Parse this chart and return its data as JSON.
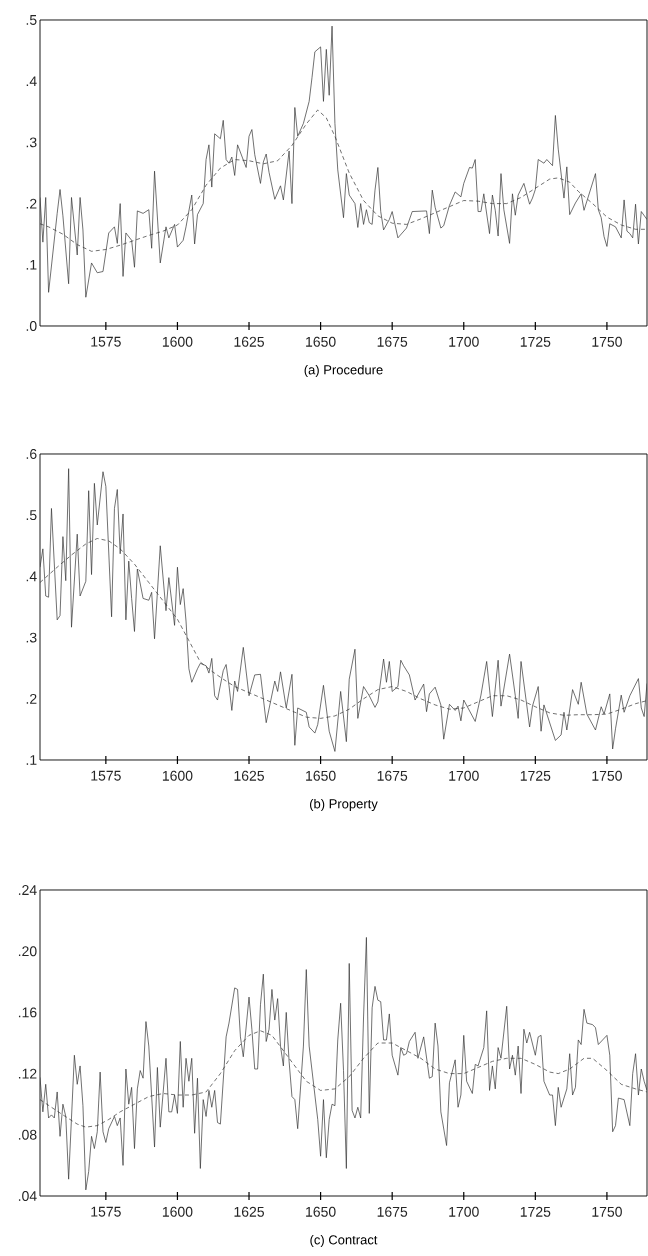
{
  "chart_data": [
    {
      "type": "line",
      "title": "(a) Procedure",
      "xlim": [
        1552,
        1764
      ],
      "ylim": [
        0,
        0.5
      ],
      "xticks": [
        1575,
        1600,
        1625,
        1650,
        1675,
        1700,
        1725,
        1750
      ],
      "yticks": [
        {
          "value": 0,
          "label": ".0"
        },
        {
          "value": 0.1,
          "label": ".1"
        },
        {
          "value": 0.2,
          "label": ".2"
        },
        {
          "value": 0.3,
          "label": ".3"
        },
        {
          "value": 0.4,
          "label": ".4"
        },
        {
          "value": 0.5,
          "label": ".5"
        }
      ],
      "series": [
        {
          "color": "#333333",
          "line_style": "solid",
          "x": [
            1552,
            1553,
            1554,
            1555,
            1558,
            1559,
            1560,
            1562,
            1563,
            1565,
            1566,
            1567,
            1568,
            1570,
            1572,
            1574,
            1576,
            1578,
            1579,
            1580,
            1581,
            1582,
            1584,
            1585,
            1586,
            1588,
            1590,
            1591,
            1592,
            1594,
            1596,
            1597,
            1599,
            1600,
            1602,
            1603,
            1605,
            1606,
            1607,
            1609,
            1610,
            1611,
            1612,
            1613,
            1615,
            1616,
            1617,
            1618,
            1619,
            1620,
            1621,
            1624,
            1625,
            1626,
            1627,
            1629,
            1630,
            1631,
            1632,
            1634,
            1636,
            1637,
            1639,
            1640,
            1641,
            1642,
            1644,
            1646,
            1647,
            1648,
            1650,
            1651,
            1652,
            1653,
            1654,
            1655,
            1656,
            1658,
            1659,
            1660,
            1662,
            1663,
            1664,
            1665,
            1666,
            1667,
            1668,
            1669,
            1670,
            1671,
            1672,
            1674,
            1675,
            1677,
            1680,
            1682,
            1687,
            1688,
            1689,
            1690,
            1692,
            1693,
            1695,
            1697,
            1699,
            1700,
            1702,
            1703,
            1704,
            1705,
            1706,
            1707,
            1709,
            1710,
            1711,
            1712,
            1713,
            1714,
            1716,
            1717,
            1718,
            1719,
            1721,
            1723,
            1724,
            1725,
            1726,
            1728,
            1729,
            1731,
            1732,
            1733,
            1735,
            1736,
            1737,
            1739,
            1741,
            1742,
            1744,
            1746,
            1747,
            1748,
            1749,
            1750,
            1751,
            1753,
            1755,
            1756,
            1757,
            1758,
            1759,
            1760,
            1761,
            1762,
            1764
          ],
          "values": [
            0.21,
            0.137,
            0.21,
            0.055,
            0.184,
            0.223,
            0.18,
            0.069,
            0.21,
            0.116,
            0.21,
            0.157,
            0.047,
            0.103,
            0.087,
            0.089,
            0.152,
            0.162,
            0.135,
            0.2,
            0.081,
            0.152,
            0.14,
            0.096,
            0.188,
            0.184,
            0.19,
            0.127,
            0.253,
            0.103,
            0.162,
            0.144,
            0.166,
            0.129,
            0.14,
            0.162,
            0.214,
            0.134,
            0.182,
            0.2,
            0.272,
            0.296,
            0.227,
            0.314,
            0.306,
            0.336,
            0.272,
            0.266,
            0.276,
            0.246,
            0.296,
            0.259,
            0.31,
            0.321,
            0.28,
            0.233,
            0.268,
            0.281,
            0.251,
            0.207,
            0.229,
            0.206,
            0.286,
            0.2,
            0.357,
            0.31,
            0.331,
            0.367,
            0.406,
            0.448,
            0.456,
            0.367,
            0.452,
            0.377,
            0.49,
            0.331,
            0.255,
            0.177,
            0.249,
            0.214,
            0.2,
            0.161,
            0.2,
            0.166,
            0.19,
            0.169,
            0.166,
            0.222,
            0.259,
            0.187,
            0.157,
            0.174,
            0.187,
            0.144,
            0.16,
            0.187,
            0.188,
            0.151,
            0.222,
            0.194,
            0.16,
            0.164,
            0.197,
            0.219,
            0.211,
            0.233,
            0.259,
            0.258,
            0.272,
            0.187,
            0.187,
            0.216,
            0.151,
            0.214,
            0.189,
            0.147,
            0.249,
            0.19,
            0.135,
            0.216,
            0.181,
            0.214,
            0.233,
            0.199,
            0.209,
            0.223,
            0.272,
            0.266,
            0.272,
            0.262,
            0.344,
            0.289,
            0.209,
            0.26,
            0.182,
            0.201,
            0.216,
            0.189,
            0.219,
            0.249,
            0.19,
            0.177,
            0.146,
            0.13,
            0.167,
            0.162,
            0.144,
            0.206,
            0.155,
            0.151,
            0.144,
            0.199,
            0.134,
            0.187,
            0.174
          ]
        },
        {
          "color": "#333333",
          "line_style": "dashed",
          "x": [
            1552,
            1555,
            1560,
            1565,
            1570,
            1575,
            1580,
            1585,
            1590,
            1595,
            1600,
            1605,
            1610,
            1615,
            1620,
            1625,
            1630,
            1635,
            1640,
            1645,
            1649,
            1652,
            1655,
            1660,
            1665,
            1670,
            1675,
            1680,
            1685,
            1690,
            1695,
            1700,
            1705,
            1710,
            1715,
            1720,
            1725,
            1730,
            1733,
            1737,
            1740,
            1745,
            1750,
            1755,
            1760,
            1764
          ],
          "values": [
            0.167,
            0.162,
            0.15,
            0.133,
            0.122,
            0.125,
            0.132,
            0.14,
            0.148,
            0.155,
            0.165,
            0.19,
            0.23,
            0.258,
            0.272,
            0.27,
            0.265,
            0.27,
            0.295,
            0.33,
            0.353,
            0.34,
            0.31,
            0.25,
            0.205,
            0.18,
            0.168,
            0.166,
            0.175,
            0.185,
            0.195,
            0.205,
            0.204,
            0.2,
            0.2,
            0.21,
            0.225,
            0.24,
            0.242,
            0.235,
            0.22,
            0.2,
            0.178,
            0.165,
            0.158,
            0.158
          ]
        }
      ]
    },
    {
      "type": "line",
      "title": "(b) Property",
      "xlim": [
        1552,
        1764
      ],
      "ylim": [
        0.1,
        0.6
      ],
      "xticks": [
        1575,
        1600,
        1625,
        1650,
        1675,
        1700,
        1725,
        1750
      ],
      "yticks": [
        {
          "value": 0.1,
          "label": ".1"
        },
        {
          "value": 0.2,
          "label": ".2"
        },
        {
          "value": 0.3,
          "label": ".3"
        },
        {
          "value": 0.4,
          "label": ".4"
        },
        {
          "value": 0.5,
          "label": ".5"
        },
        {
          "value": 0.6,
          "label": ".6"
        }
      ],
      "series": [
        {
          "color": "#333333",
          "line_style": "solid",
          "x": [
            1552,
            1553,
            1554,
            1555,
            1556,
            1558,
            1559,
            1560,
            1561,
            1562,
            1563,
            1565,
            1566,
            1568,
            1569,
            1570,
            1571,
            1572,
            1574,
            1575,
            1577,
            1578,
            1579,
            1580,
            1581,
            1582,
            1583,
            1584,
            1585,
            1586,
            1588,
            1590,
            1591,
            1592,
            1594,
            1596,
            1597,
            1599,
            1600,
            1601,
            1602,
            1603,
            1604,
            1605,
            1607,
            1608,
            1610,
            1611,
            1612,
            1613,
            1614,
            1616,
            1617,
            1618,
            1619,
            1620,
            1621,
            1623,
            1625,
            1627,
            1629,
            1631,
            1634,
            1635,
            1636,
            1638,
            1640,
            1641,
            1642,
            1645,
            1646,
            1648,
            1649,
            1651,
            1653,
            1655,
            1657,
            1659,
            1660,
            1662,
            1663,
            1665,
            1667,
            1669,
            1670,
            1672,
            1673,
            1674,
            1675,
            1677,
            1678,
            1679,
            1681,
            1683,
            1686,
            1687,
            1688,
            1690,
            1692,
            1693,
            1695,
            1697,
            1698,
            1699,
            1700,
            1704,
            1706,
            1708,
            1710,
            1712,
            1713,
            1716,
            1718,
            1719,
            1720,
            1723,
            1724,
            1726,
            1727,
            1728,
            1732,
            1734,
            1735,
            1736,
            1738,
            1740,
            1741,
            1743,
            1746,
            1748,
            1749,
            1751,
            1752,
            1753,
            1755,
            1756,
            1758,
            1761,
            1762,
            1763,
            1764
          ],
          "values": [
            0.415,
            0.445,
            0.368,
            0.366,
            0.511,
            0.329,
            0.336,
            0.465,
            0.393,
            0.576,
            0.317,
            0.469,
            0.368,
            0.392,
            0.54,
            0.403,
            0.552,
            0.484,
            0.571,
            0.547,
            0.334,
            0.511,
            0.542,
            0.437,
            0.502,
            0.329,
            0.425,
            0.364,
            0.31,
            0.412,
            0.364,
            0.361,
            0.374,
            0.298,
            0.45,
            0.344,
            0.398,
            0.32,
            0.415,
            0.354,
            0.38,
            0.327,
            0.249,
            0.227,
            0.249,
            0.258,
            0.254,
            0.242,
            0.266,
            0.205,
            0.198,
            0.246,
            0.256,
            0.222,
            0.181,
            0.229,
            0.212,
            0.284,
            0.205,
            0.239,
            0.24,
            0.161,
            0.229,
            0.212,
            0.244,
            0.185,
            0.24,
            0.124,
            0.185,
            0.178,
            0.154,
            0.144,
            0.158,
            0.222,
            0.147,
            0.114,
            0.212,
            0.13,
            0.232,
            0.281,
            0.168,
            0.22,
            0.205,
            0.186,
            0.195,
            0.265,
            0.227,
            0.261,
            0.212,
            0.22,
            0.263,
            0.254,
            0.239,
            0.198,
            0.224,
            0.179,
            0.208,
            0.219,
            0.19,
            0.134,
            0.191,
            0.181,
            0.188,
            0.164,
            0.198,
            0.163,
            0.206,
            0.261,
            0.171,
            0.263,
            0.188,
            0.273,
            0.205,
            0.168,
            0.261,
            0.154,
            0.188,
            0.22,
            0.147,
            0.19,
            0.132,
            0.141,
            0.178,
            0.149,
            0.215,
            0.191,
            0.227,
            0.175,
            0.149,
            0.187,
            0.175,
            0.208,
            0.118,
            0.151,
            0.206,
            0.178,
            0.205,
            0.233,
            0.185,
            0.171,
            0.225
          ]
        },
        {
          "color": "#333333",
          "line_style": "dashed",
          "x": [
            1552,
            1558,
            1563,
            1568,
            1572,
            1576,
            1580,
            1585,
            1590,
            1595,
            1600,
            1604,
            1608,
            1612,
            1616,
            1620,
            1625,
            1630,
            1635,
            1640,
            1645,
            1650,
            1655,
            1660,
            1665,
            1670,
            1675,
            1680,
            1685,
            1690,
            1695,
            1700,
            1705,
            1710,
            1715,
            1720,
            1725,
            1730,
            1735,
            1740,
            1745,
            1750,
            1755,
            1760,
            1764
          ],
          "values": [
            0.39,
            0.415,
            0.435,
            0.453,
            0.462,
            0.458,
            0.445,
            0.42,
            0.39,
            0.36,
            0.33,
            0.295,
            0.26,
            0.245,
            0.232,
            0.22,
            0.21,
            0.2,
            0.19,
            0.18,
            0.17,
            0.168,
            0.172,
            0.183,
            0.2,
            0.215,
            0.22,
            0.212,
            0.2,
            0.19,
            0.183,
            0.185,
            0.195,
            0.205,
            0.205,
            0.198,
            0.187,
            0.177,
            0.173,
            0.174,
            0.174,
            0.175,
            0.183,
            0.192,
            0.197
          ]
        }
      ]
    },
    {
      "type": "line",
      "title": "(c) Contract",
      "xlim": [
        1552,
        1764
      ],
      "ylim": [
        0.04,
        0.24
      ],
      "xticks": [
        1575,
        1600,
        1625,
        1650,
        1675,
        1700,
        1725,
        1750
      ],
      "yticks": [
        {
          "value": 0.04,
          "label": ".04"
        },
        {
          "value": 0.08,
          "label": ".08"
        },
        {
          "value": 0.12,
          "label": ".12"
        },
        {
          "value": 0.16,
          "label": ".16"
        },
        {
          "value": 0.2,
          "label": ".20"
        },
        {
          "value": 0.24,
          "label": ".24"
        }
      ],
      "series": [
        {
          "color": "#333333",
          "line_style": "solid",
          "x": [
            1552,
            1553,
            1554,
            1555,
            1556,
            1557,
            1558,
            1559,
            1560,
            1561,
            1562,
            1563,
            1564,
            1565,
            1566,
            1567,
            1568,
            1569,
            1570,
            1571,
            1572,
            1573,
            1574,
            1575,
            1576,
            1578,
            1579,
            1580,
            1581,
            1582,
            1583,
            1584,
            1585,
            1586,
            1587,
            1588,
            1589,
            1590,
            1592,
            1593,
            1594,
            1596,
            1597,
            1598,
            1599,
            1600,
            1601,
            1602,
            1603,
            1604,
            1605,
            1606,
            1607,
            1608,
            1609,
            1610,
            1611,
            1612,
            1613,
            1614,
            1615,
            1617,
            1618,
            1620,
            1621,
            1622,
            1623,
            1625,
            1626,
            1627,
            1628,
            1629,
            1630,
            1631,
            1632,
            1633,
            1634,
            1635,
            1636,
            1637,
            1638,
            1639,
            1640,
            1641,
            1642,
            1644,
            1645,
            1646,
            1648,
            1649,
            1650,
            1651,
            1652,
            1653,
            1654,
            1655,
            1656,
            1657,
            1658,
            1659,
            1660,
            1661,
            1662,
            1663,
            1664,
            1665,
            1666,
            1667,
            1668,
            1669,
            1670,
            1671,
            1672,
            1673,
            1674,
            1675,
            1677,
            1678,
            1679,
            1680,
            1681,
            1683,
            1684,
            1686,
            1688,
            1689,
            1690,
            1691,
            1692,
            1694,
            1695,
            1697,
            1698,
            1699,
            1700,
            1701,
            1703,
            1704,
            1705,
            1707,
            1708,
            1709,
            1710,
            1711,
            1712,
            1713,
            1715,
            1716,
            1717,
            1718,
            1719,
            1720,
            1721,
            1722,
            1723,
            1725,
            1726,
            1727,
            1728,
            1730,
            1731,
            1732,
            1733,
            1734,
            1736,
            1737,
            1738,
            1739,
            1740,
            1741,
            1742,
            1743,
            1745,
            1746,
            1747,
            1750,
            1751,
            1752,
            1753,
            1754,
            1756,
            1758,
            1759,
            1760,
            1761,
            1762,
            1763,
            1764
          ],
          "values": [
            0.1175,
            0.095,
            0.113,
            0.091,
            0.093,
            0.091,
            0.108,
            0.079,
            0.1,
            0.092,
            0.051,
            0.091,
            0.132,
            0.113,
            0.125,
            0.099,
            0.044,
            0.056,
            0.079,
            0.071,
            0.082,
            0.121,
            0.082,
            0.075,
            0.084,
            0.092,
            0.086,
            0.091,
            0.06,
            0.123,
            0.1,
            0.111,
            0.071,
            0.11,
            0.122,
            0.117,
            0.154,
            0.138,
            0.072,
            0.124,
            0.085,
            0.13,
            0.095,
            0.095,
            0.106,
            0.094,
            0.141,
            0.098,
            0.13,
            0.115,
            0.13,
            0.081,
            0.117,
            0.058,
            0.103,
            0.092,
            0.109,
            0.098,
            0.109,
            0.088,
            0.087,
            0.144,
            0.153,
            0.176,
            0.175,
            0.144,
            0.131,
            0.17,
            0.149,
            0.123,
            0.123,
            0.165,
            0.185,
            0.141,
            0.149,
            0.175,
            0.155,
            0.169,
            0.138,
            0.125,
            0.16,
            0.128,
            0.105,
            0.103,
            0.084,
            0.138,
            0.188,
            0.138,
            0.106,
            0.09,
            0.066,
            0.103,
            0.065,
            0.09,
            0.1,
            0.099,
            0.142,
            0.166,
            0.122,
            0.058,
            0.192,
            0.096,
            0.091,
            0.098,
            0.091,
            0.157,
            0.209,
            0.094,
            0.163,
            0.177,
            0.168,
            0.167,
            0.142,
            0.142,
            0.159,
            0.132,
            0.119,
            0.137,
            0.132,
            0.133,
            0.141,
            0.147,
            0.13,
            0.144,
            0.117,
            0.118,
            0.153,
            0.138,
            0.095,
            0.073,
            0.114,
            0.129,
            0.098,
            0.106,
            0.145,
            0.115,
            0.107,
            0.126,
            0.125,
            0.137,
            0.161,
            0.109,
            0.125,
            0.11,
            0.137,
            0.13,
            0.164,
            0.123,
            0.132,
            0.119,
            0.138,
            0.107,
            0.149,
            0.14,
            0.147,
            0.132,
            0.144,
            0.145,
            0.115,
            0.106,
            0.106,
            0.086,
            0.111,
            0.098,
            0.11,
            0.133,
            0.106,
            0.111,
            0.142,
            0.139,
            0.162,
            0.153,
            0.152,
            0.15,
            0.139,
            0.145,
            0.132,
            0.082,
            0.086,
            0.104,
            0.103,
            0.086,
            0.12,
            0.133,
            0.106,
            0.123,
            0.115,
            0.109
          ]
        },
        {
          "color": "#333333",
          "line_style": "dashed",
          "x": [
            1552,
            1556,
            1560,
            1565,
            1568,
            1572,
            1576,
            1580,
            1585,
            1590,
            1595,
            1600,
            1605,
            1610,
            1615,
            1620,
            1625,
            1629,
            1633,
            1637,
            1641,
            1645,
            1650,
            1655,
            1660,
            1665,
            1670,
            1675,
            1680,
            1685,
            1690,
            1695,
            1700,
            1705,
            1710,
            1715,
            1720,
            1725,
            1730,
            1733,
            1737,
            1742,
            1745,
            1750,
            1755,
            1760,
            1764
          ],
          "values": [
            0.103,
            0.098,
            0.093,
            0.087,
            0.085,
            0.086,
            0.09,
            0.095,
            0.1,
            0.105,
            0.107,
            0.106,
            0.106,
            0.108,
            0.12,
            0.135,
            0.145,
            0.148,
            0.145,
            0.135,
            0.125,
            0.115,
            0.109,
            0.11,
            0.118,
            0.13,
            0.14,
            0.14,
            0.135,
            0.13,
            0.123,
            0.12,
            0.12,
            0.124,
            0.128,
            0.13,
            0.13,
            0.126,
            0.121,
            0.12,
            0.123,
            0.13,
            0.13,
            0.122,
            0.113,
            0.11,
            0.108
          ]
        }
      ]
    }
  ]
}
